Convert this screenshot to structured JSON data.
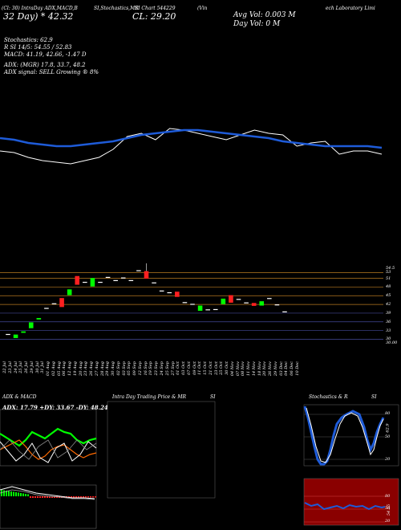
{
  "header": {
    "line1a": "(Cl: 30) IntraDay ADX,MACD,B",
    "line1b": "SI,Stochastics,MR",
    "line1c": "SI Chart 544229",
    "line1d": "(Vin",
    "line1e": "ech Laboratory Limi",
    "cl_big": "CL: 29.20",
    "chg_big": "32  Day) * 42.32",
    "avg_vol": "Avg Vol: 0.003 M",
    "day_vol": "Day Vol: 0   M"
  },
  "indicators": {
    "stoch": "Stochastics: 62.9",
    "rsi": "R                    SI 14/5: 54.55 / 52.83",
    "macd": "MACD: 41.19, 42.66, -1.47 D",
    "adx": "ADX:                         (MGR) 17.8,  33.7, 48.2",
    "adx_signal": "ADX  signal: SELL Growing ® 8%"
  },
  "price_axis": [
    "54.5",
    "53",
    "51",
    "48",
    "45",
    "42",
    "39",
    "36",
    "33",
    "30",
    "30.00"
  ],
  "dates": [
    "22 Jul",
    "23 Jul",
    "24 Jul",
    "25 Jul",
    "26 Jul",
    "29 Jul",
    "30 Jul",
    "31 Jul",
    "01 Aug",
    "02 Aug",
    "05 Aug",
    "06 Aug",
    "12 Aug",
    "19 Aug",
    "20 Aug",
    "23 Aug",
    "26 Aug",
    "27 Aug",
    "28 Aug",
    "29 Aug",
    "30 Aug",
    "02 Sep",
    "03 Sep",
    "05 Sep",
    "09 Sep",
    "12 Sep",
    "16 Sep",
    "19 Sep",
    "23 Sep",
    "24 Sep",
    "25 Sep",
    "27 Sep",
    "01 Oct",
    "03 Oct",
    "07 Oct",
    "09 Oct",
    "11 Oct",
    "15 Oct",
    "21 Oct",
    "23 Oct",
    "25 Oct",
    "30 Oct",
    "04 Nov",
    "07 Nov",
    "08 Nov",
    "11 Nov",
    "14 Nov",
    "18 Nov",
    "20 Nov",
    "26 Nov",
    "29 Nov",
    "03 Dec",
    "04 Dec",
    "06 Dec",
    "10 Dec"
  ],
  "bottom": {
    "adx_title": "ADX  & MACD",
    "adx_values": "ADX: 17.79  +DY: 33.67  -DY: 48.24",
    "intra_title": "Intra  Day Trading Price  & MR",
    "intra_si": "SI",
    "stoch_title": "Stochastics & R",
    "stoch_si": "SI",
    "stoch_axis": [
      "80",
      "50",
      "20"
    ],
    "stoch_val": "62.9",
    "rsi_axis": [
      "80",
      "50",
      "20"
    ],
    "rsi_val": "54.55"
  },
  "colors": {
    "blue_line": "#1e5bd8",
    "white_line": "#ffffff",
    "up": "#00ff00",
    "down": "#ff2020",
    "gridline": "#b87a20",
    "rsi_bg": "#8a0000"
  },
  "chart_data": [
    {
      "type": "line",
      "title": "",
      "series": [
        {
          "values": [
            0.86,
            0.85,
            0.82,
            0.8,
            0.79,
            0.78,
            0.8,
            0.82,
            0.87,
            0.95,
            0.97,
            0.93,
            1.0,
            0.99,
            0.97,
            0.95,
            0.93,
            0.96,
            0.99,
            0.97,
            0.96,
            0.89,
            0.91,
            0.92,
            0.84,
            0.86,
            0.86,
            0.84
          ]
        },
        {
          "values": [
            0.94,
            0.93,
            0.91,
            0.9,
            0.89,
            0.89,
            0.9,
            0.91,
            0.92,
            0.94,
            0.96,
            0.97,
            0.98,
            0.99,
            0.99,
            0.98,
            0.97,
            0.96,
            0.95,
            0.94,
            0.92,
            0.91,
            0.9,
            0.89,
            0.89,
            0.89,
            0.89,
            0.88
          ]
        }
      ]
    },
    {
      "type": "bar",
      "title": "",
      "candles": [
        {
          "o": 31.8,
          "c": 31.6
        },
        {
          "o": 30.4,
          "c": 31.6
        },
        {
          "o": 32.2,
          "c": 32.7
        },
        {
          "o": 33.8,
          "c": 35.8
        },
        {
          "o": 36.8,
          "c": 37.3
        },
        {
          "o": 40.8,
          "c": 40.6
        },
        {
          "o": 42.4,
          "c": 42.2
        },
        {
          "o": 44.2,
          "c": 41.1
        },
        {
          "o": 45.2,
          "c": 47.2
        },
        {
          "o": 51.8,
          "c": 48.8
        },
        {
          "o": 49.6,
          "c": 49.8
        },
        {
          "o": 48.2,
          "c": 51.1
        },
        {
          "o": 49.5,
          "c": 49.8
        },
        {
          "o": 51.5,
          "c": 51.3
        },
        {
          "o": 50.4,
          "c": 50.2
        },
        {
          "o": 51.3,
          "c": 51.2
        },
        {
          "o": 50.4,
          "c": 50.4
        },
        {
          "o": 53.8,
          "c": 53.6
        },
        {
          "o": 53.5,
          "c": 50.9
        },
        {
          "o": 49.6,
          "c": 49.4
        },
        {
          "o": 46.8,
          "c": 46.6
        },
        {
          "o": 46.2,
          "c": 46.1
        },
        {
          "o": 46.4,
          "c": 44.6
        },
        {
          "o": 42.8,
          "c": 42.8
        },
        {
          "o": 42.2,
          "c": 42.2
        },
        {
          "o": 39.8,
          "c": 41.6
        },
        {
          "o": 40.3,
          "c": 40.2
        },
        {
          "o": 40.4,
          "c": 40.3
        },
        {
          "o": 42.1,
          "c": 44.0
        },
        {
          "o": 45.2,
          "c": 42.6
        },
        {
          "o": 43.9,
          "c": 43.8
        },
        {
          "o": 42.7,
          "c": 42.7
        },
        {
          "o": 42.5,
          "c": 41.5
        },
        {
          "o": 41.6,
          "c": 43.1
        },
        {
          "o": 44.2,
          "c": 44.0
        },
        {
          "o": 42.0,
          "c": 42.0
        },
        {
          "o": 39.6,
          "c": 39.6
        }
      ]
    }
  ]
}
